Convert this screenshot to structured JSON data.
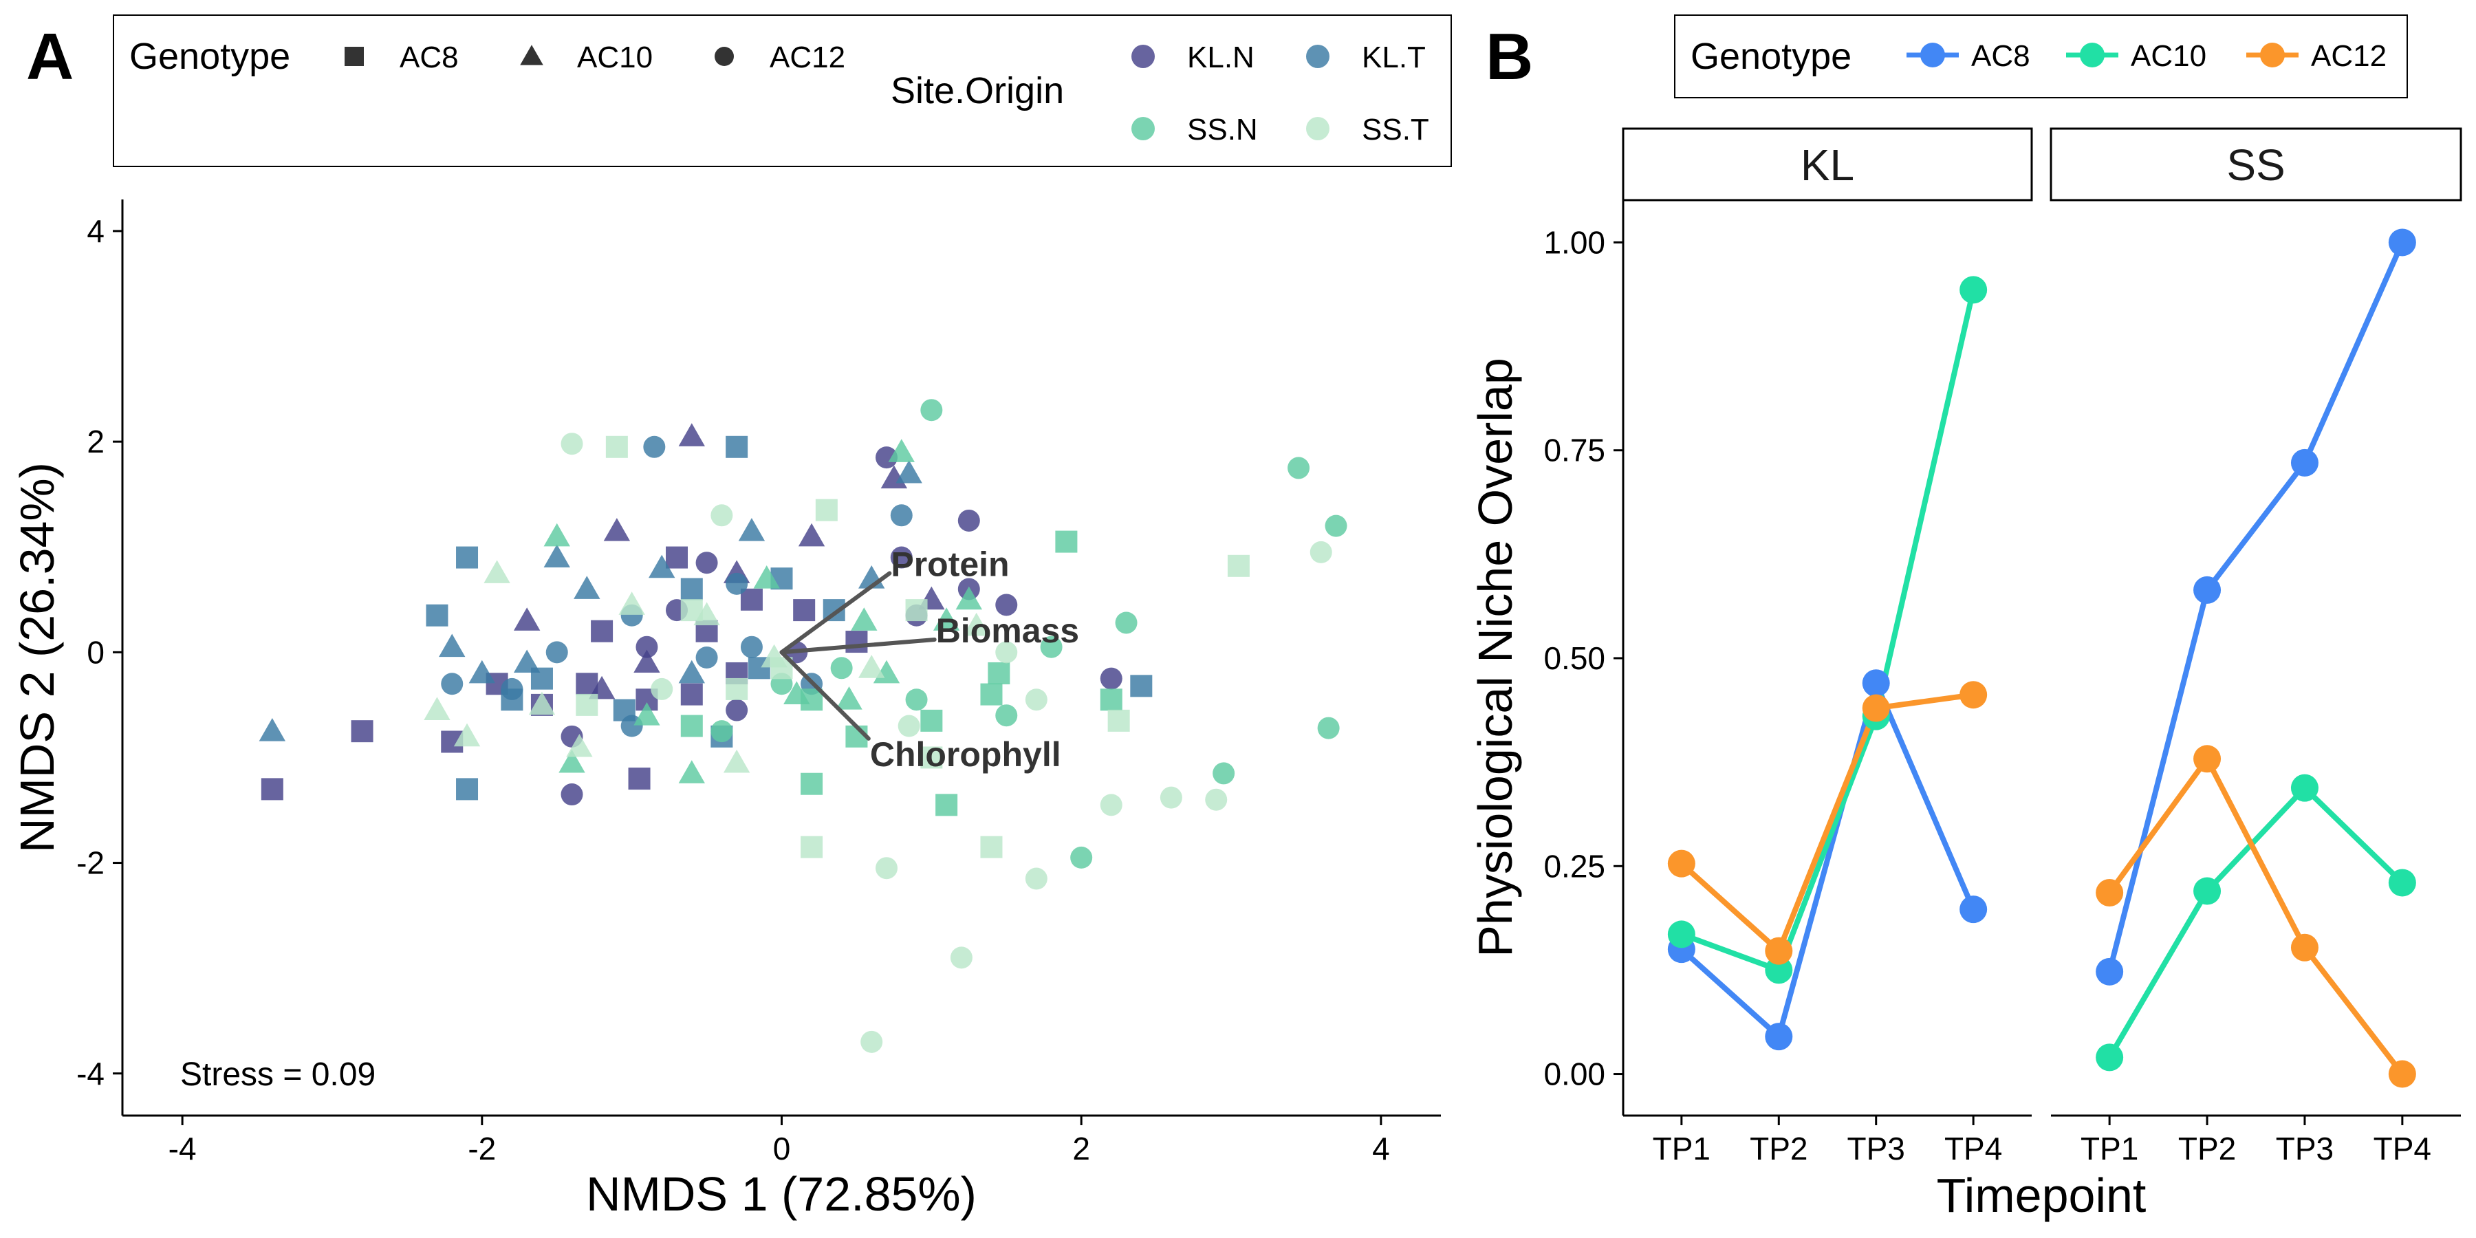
{
  "panels": {
    "a": {
      "letter": "A",
      "annotation": "Stress = 0.09",
      "legend": {
        "genotype_title": "Genotype",
        "genotype_items": [
          {
            "label": "AC8",
            "shape": "square"
          },
          {
            "label": "AC10",
            "shape": "triangle"
          },
          {
            "label": "AC12",
            "shape": "circle"
          }
        ],
        "site_title": "Site.Origin",
        "site_items": [
          {
            "label": "KL.N",
            "color": "#46428a"
          },
          {
            "label": "KL.T",
            "color": "#3b7aa3"
          },
          {
            "label": "SS.N",
            "color": "#5ecba1"
          },
          {
            "label": "SS.T",
            "color": "#b9e6c9"
          }
        ]
      }
    },
    "b": {
      "letter": "B",
      "legend": {
        "title": "Genotype",
        "items": [
          {
            "label": "AC8",
            "color": "#4287f5"
          },
          {
            "label": "AC10",
            "color": "#21e0a5"
          },
          {
            "label": "AC12",
            "color": "#fb962b"
          }
        ]
      }
    }
  },
  "chart_data": [
    {
      "type": "scatter",
      "title": "",
      "xlabel": "NMDS 1 (72.85%)",
      "ylabel": "NMDS 2 (26.34%)",
      "xlim": [
        -4.4,
        4.4
      ],
      "ylim": [
        -4.4,
        4.3
      ],
      "xticks": [
        -4,
        -2,
        0,
        2,
        4
      ],
      "yticks": [
        -4,
        -2,
        0,
        2,
        4
      ],
      "grid": false,
      "vectors": [
        {
          "label": "Protein",
          "x": 0.72,
          "y": 0.75
        },
        {
          "label": "Biomass",
          "x": 1.02,
          "y": 0.12
        },
        {
          "label": "Chlorophyll",
          "x": 0.58,
          "y": -0.82
        }
      ],
      "series": [
        {
          "name": "KL.N",
          "genotype": "AC8",
          "points": [
            [
              -3.4,
              -1.3
            ],
            [
              -2.8,
              -0.75
            ],
            [
              -2.2,
              -0.85
            ],
            [
              -1.9,
              -0.3
            ],
            [
              -1.6,
              -0.5
            ],
            [
              -1.3,
              -0.3
            ],
            [
              -1.2,
              0.2
            ],
            [
              -0.9,
              -0.45
            ],
            [
              -0.7,
              0.9
            ],
            [
              -0.6,
              -0.4
            ],
            [
              -0.5,
              0.2
            ],
            [
              -0.3,
              -0.2
            ],
            [
              -0.95,
              -1.2
            ],
            [
              0.15,
              0.4
            ],
            [
              0.5,
              0.1
            ],
            [
              -0.2,
              0.5
            ]
          ]
        },
        {
          "name": "KL.N",
          "genotype": "AC10",
          "points": [
            [
              -0.6,
              2.05
            ],
            [
              -1.1,
              1.15
            ],
            [
              -0.3,
              0.75
            ],
            [
              -0.9,
              -0.1
            ],
            [
              0.75,
              1.65
            ],
            [
              1.0,
              0.5
            ],
            [
              -1.7,
              0.3
            ],
            [
              -1.2,
              -0.35
            ],
            [
              0.2,
              1.1
            ]
          ]
        },
        {
          "name": "KL.N",
          "genotype": "AC12",
          "points": [
            [
              0.7,
              1.85
            ],
            [
              1.25,
              1.25
            ],
            [
              1.5,
              0.45
            ],
            [
              2.2,
              -0.25
            ],
            [
              -0.5,
              0.85
            ],
            [
              -0.7,
              0.4
            ],
            [
              -0.3,
              -0.55
            ],
            [
              0.8,
              0.9
            ],
            [
              -1.4,
              -0.8
            ],
            [
              -1.4,
              -1.35
            ],
            [
              -0.9,
              0.05
            ],
            [
              0.9,
              0.35
            ],
            [
              1.25,
              0.6
            ],
            [
              0.1,
              0.0
            ]
          ]
        },
        {
          "name": "KL.T",
          "genotype": "AC8",
          "points": [
            [
              -0.3,
              1.95
            ],
            [
              -2.1,
              0.9
            ],
            [
              -2.3,
              0.35
            ],
            [
              -2.1,
              -1.3
            ],
            [
              -1.8,
              -0.45
            ],
            [
              -0.6,
              0.6
            ],
            [
              -0.4,
              -0.8
            ],
            [
              0.0,
              0.7
            ],
            [
              0.35,
              0.4
            ],
            [
              -1.05,
              -0.55
            ],
            [
              -0.15,
              -0.15
            ],
            [
              -1.6,
              -0.25
            ],
            [
              2.4,
              -0.32
            ]
          ]
        },
        {
          "name": "KL.T",
          "genotype": "AC10",
          "points": [
            [
              -3.4,
              -0.75
            ],
            [
              -2.0,
              -0.2
            ],
            [
              -1.5,
              0.9
            ],
            [
              -1.3,
              0.6
            ],
            [
              -0.8,
              0.8
            ],
            [
              -0.2,
              1.15
            ],
            [
              0.6,
              0.7
            ],
            [
              -0.6,
              -0.2
            ],
            [
              -2.2,
              0.05
            ],
            [
              -1.7,
              -0.1
            ],
            [
              0.85,
              1.7
            ]
          ]
        },
        {
          "name": "KL.T",
          "genotype": "AC12",
          "points": [
            [
              -0.85,
              1.95
            ],
            [
              0.8,
              1.3
            ],
            [
              -2.2,
              -0.3
            ],
            [
              -1.5,
              0.0
            ],
            [
              -1.0,
              0.35
            ],
            [
              -0.5,
              -0.05
            ],
            [
              0.2,
              -0.3
            ],
            [
              -0.2,
              0.05
            ],
            [
              -1.8,
              -0.35
            ],
            [
              -1.0,
              -0.7
            ],
            [
              -0.3,
              0.65
            ]
          ]
        },
        {
          "name": "SS.N",
          "genotype": "AC8",
          "points": [
            [
              1.9,
              1.05
            ],
            [
              1.1,
              -1.45
            ],
            [
              0.2,
              -1.25
            ],
            [
              1.4,
              -0.4
            ],
            [
              2.2,
              -0.45
            ],
            [
              0.5,
              -0.8
            ],
            [
              -0.6,
              -0.7
            ],
            [
              0.2,
              -0.45
            ],
            [
              1.0,
              -0.65
            ],
            [
              1.45,
              -0.2
            ]
          ]
        },
        {
          "name": "SS.N",
          "genotype": "AC10",
          "points": [
            [
              0.8,
              1.9
            ],
            [
              -1.5,
              1.1
            ],
            [
              -0.9,
              -0.6
            ],
            [
              -0.1,
              0.7
            ],
            [
              0.55,
              0.3
            ],
            [
              1.25,
              0.5
            ],
            [
              0.7,
              -0.2
            ],
            [
              -1.4,
              -1.05
            ],
            [
              1.1,
              0.3
            ],
            [
              0.1,
              -0.4
            ],
            [
              0.45,
              -0.45
            ],
            [
              -0.6,
              -1.15
            ]
          ]
        },
        {
          "name": "SS.N",
          "genotype": "AC12",
          "points": [
            [
              1.0,
              2.3
            ],
            [
              3.45,
              1.75
            ],
            [
              3.7,
              1.2
            ],
            [
              2.3,
              0.28
            ],
            [
              1.8,
              0.05
            ],
            [
              3.65,
              -0.72
            ],
            [
              2.95,
              -1.15
            ],
            [
              2.0,
              -1.95
            ],
            [
              -0.4,
              -0.75
            ],
            [
              0.0,
              -0.3
            ],
            [
              0.4,
              -0.15
            ],
            [
              0.9,
              -0.45
            ],
            [
              1.5,
              -0.6
            ]
          ]
        },
        {
          "name": "SS.T",
          "genotype": "AC8",
          "points": [
            [
              -1.1,
              1.95
            ],
            [
              0.3,
              1.35
            ],
            [
              3.05,
              0.82
            ],
            [
              -1.3,
              -0.5
            ],
            [
              -0.6,
              0.4
            ],
            [
              0.0,
              -0.15
            ],
            [
              1.4,
              -1.85
            ],
            [
              0.2,
              -1.85
            ],
            [
              2.25,
              -0.65
            ],
            [
              1.0,
              -1.0
            ],
            [
              -0.3,
              -0.35
            ],
            [
              0.9,
              0.4
            ]
          ]
        },
        {
          "name": "SS.T",
          "genotype": "AC10",
          "points": [
            [
              -2.3,
              -0.55
            ],
            [
              -1.9,
              0.75
            ],
            [
              -1.35,
              -0.9
            ],
            [
              -1.0,
              0.45
            ],
            [
              -0.5,
              0.35
            ],
            [
              -0.3,
              -1.05
            ],
            [
              0.6,
              -0.15
            ],
            [
              1.3,
              0.25
            ],
            [
              -2.1,
              -0.8
            ],
            [
              -1.6,
              -0.5
            ],
            [
              -0.05,
              -0.05
            ]
          ]
        },
        {
          "name": "SS.T",
          "genotype": "AC12",
          "points": [
            [
              -1.4,
              1.98
            ],
            [
              0.6,
              -3.7
            ],
            [
              1.2,
              -2.9
            ],
            [
              0.7,
              -2.05
            ],
            [
              1.7,
              -2.15
            ],
            [
              2.6,
              -1.38
            ],
            [
              2.9,
              -1.4
            ],
            [
              3.6,
              0.95
            ],
            [
              0.85,
              -0.7
            ],
            [
              -0.4,
              1.3
            ],
            [
              2.2,
              -1.45
            ],
            [
              -0.8,
              -0.35
            ],
            [
              1.7,
              -0.45
            ],
            [
              1.5,
              0.0
            ]
          ]
        }
      ]
    },
    {
      "type": "line",
      "title": "",
      "xlabel": "Timepoint",
      "ylabel": "Physiological Niche Overlap",
      "categories": [
        "TP1",
        "TP2",
        "TP3",
        "TP4"
      ],
      "ylim": [
        -0.05,
        1.05
      ],
      "yticks": [
        "0.00",
        "0.25",
        "0.50",
        "0.75",
        "1.00"
      ],
      "grid": false,
      "legend_position": "top",
      "facets": [
        {
          "name": "KL",
          "series": [
            {
              "name": "AC8",
              "values": [
                0.15,
                0.045,
                0.47,
                0.198
              ]
            },
            {
              "name": "AC10",
              "values": [
                0.168,
                0.125,
                0.43,
                0.943
              ]
            },
            {
              "name": "AC12",
              "values": [
                0.253,
                0.148,
                0.44,
                0.456
              ]
            }
          ]
        },
        {
          "name": "SS",
          "series": [
            {
              "name": "AC8",
              "values": [
                0.123,
                0.582,
                0.735,
                1.0
              ]
            },
            {
              "name": "AC10",
              "values": [
                0.02,
                0.22,
                0.344,
                0.23
              ]
            },
            {
              "name": "AC12",
              "values": [
                0.218,
                0.379,
                0.152,
                0.0
              ]
            }
          ]
        }
      ]
    }
  ]
}
